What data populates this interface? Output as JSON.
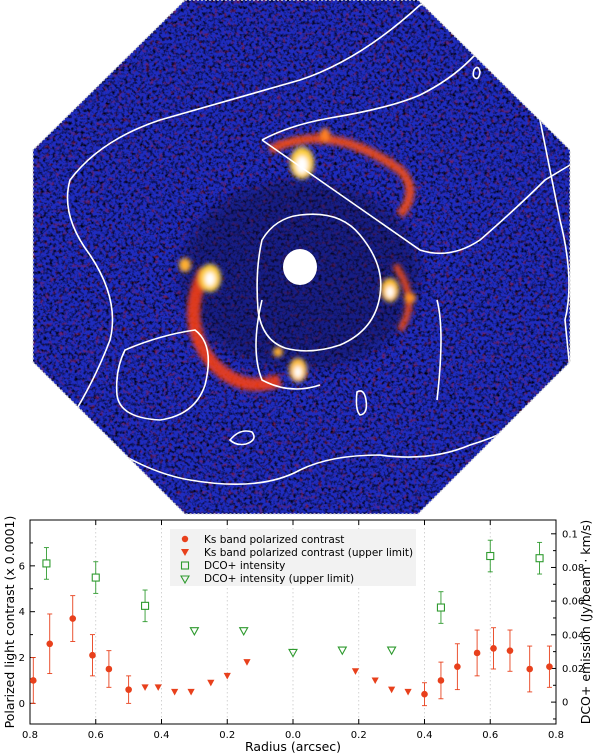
{
  "chart_data": [
    {
      "type": "image",
      "content": "polarized light image with white DCO+ contours",
      "colormap": [
        "#000008",
        "#101070",
        "#2a35d8",
        "#b02020",
        "#ff5a10",
        "#ffd060",
        "#ffffff"
      ],
      "contour_color": "#ffffff"
    },
    {
      "type": "scatter",
      "xlabel": "Radius (arcsec)",
      "ylabel": "Polarized light contrast (x 0.0001)",
      "y2label": "DCO+ emission (Jy/beam · km/s)",
      "xlim": [
        0.8,
        -0.8
      ],
      "ylim": [
        -0.9,
        8.0
      ],
      "y2lim": [
        -0.013,
        0.1082
      ],
      "xticks": [
        "0.8",
        "0.6",
        "0.4",
        "0.2",
        "0.0",
        "0.2",
        "0.4",
        "0.6",
        "0.8"
      ],
      "xtick_values": [
        0.8,
        0.6,
        0.4,
        0.2,
        0.0,
        -0.2,
        -0.4,
        -0.6,
        -0.8
      ],
      "yticks": [
        "0",
        "2",
        "4",
        "6"
      ],
      "ytick_values": [
        0,
        2,
        4,
        6
      ],
      "y2ticks": [
        "0",
        "0.02",
        "0.04",
        "0.06",
        "0.08",
        "0.1"
      ],
      "y2tick_values": [
        0,
        0.02,
        0.04,
        0.06,
        0.08,
        0.1
      ],
      "grid": "vertical dotted at x ticks",
      "legend_position": "top-center",
      "series": [
        {
          "name": "Ks band polarized contrast",
          "marker": "filled-circle",
          "color": "#e8401c",
          "axis": "left",
          "points": [
            {
              "x": 0.79,
              "y": 1.0,
              "err": 1.0
            },
            {
              "x": 0.74,
              "y": 2.6,
              "err": 1.3
            },
            {
              "x": 0.67,
              "y": 3.7,
              "err": 1.0
            },
            {
              "x": 0.61,
              "y": 2.1,
              "err": 0.9
            },
            {
              "x": 0.56,
              "y": 1.5,
              "err": 0.8
            },
            {
              "x": 0.5,
              "y": 0.6,
              "err": 0.6
            },
            {
              "x": -0.4,
              "y": 0.4,
              "err": 0.5
            },
            {
              "x": -0.45,
              "y": 1.0,
              "err": 0.8
            },
            {
              "x": -0.5,
              "y": 1.6,
              "err": 1.0
            },
            {
              "x": -0.56,
              "y": 2.2,
              "err": 1.0
            },
            {
              "x": -0.61,
              "y": 2.4,
              "err": 0.9
            },
            {
              "x": -0.66,
              "y": 2.3,
              "err": 0.9
            },
            {
              "x": -0.72,
              "y": 1.5,
              "err": 1.0
            },
            {
              "x": -0.78,
              "y": 1.6,
              "err": 0.9
            }
          ]
        },
        {
          "name": "Ks band polarized contrast (upper limit)",
          "marker": "filled-triangle-down",
          "color": "#e8401c",
          "axis": "left",
          "points": [
            {
              "x": 0.45,
              "y": 0.7
            },
            {
              "x": 0.41,
              "y": 0.7
            },
            {
              "x": 0.36,
              "y": 0.5
            },
            {
              "x": 0.31,
              "y": 0.5
            },
            {
              "x": 0.25,
              "y": 0.9
            },
            {
              "x": 0.2,
              "y": 1.2
            },
            {
              "x": 0.14,
              "y": 1.8
            },
            {
              "x": -0.19,
              "y": 1.4
            },
            {
              "x": -0.25,
              "y": 1.0
            },
            {
              "x": -0.3,
              "y": 0.6
            },
            {
              "x": -0.35,
              "y": 0.5
            }
          ]
        },
        {
          "name": "DCO+ intensity",
          "marker": "open-square",
          "color": "#2e9a2e",
          "axis": "right",
          "points": [
            {
              "x": 0.75,
              "y": 0.0824,
              "err": 0.0094
            },
            {
              "x": 0.6,
              "y": 0.074,
              "err": 0.0094
            },
            {
              "x": 0.45,
              "y": 0.0572,
              "err": 0.0094
            },
            {
              "x": -0.45,
              "y": 0.0562,
              "err": 0.0094
            },
            {
              "x": -0.6,
              "y": 0.0868,
              "err": 0.0094
            },
            {
              "x": -0.75,
              "y": 0.0855,
              "err": 0.0094
            }
          ]
        },
        {
          "name": "DCO+ intensity (upper limit)",
          "marker": "open-triangle-down",
          "color": "#2e9a2e",
          "axis": "right",
          "points": [
            {
              "x": 0.3,
              "y": 0.0422
            },
            {
              "x": 0.15,
              "y": 0.0422
            },
            {
              "x": 0.0,
              "y": 0.0293
            },
            {
              "x": -0.15,
              "y": 0.0307
            },
            {
              "x": -0.3,
              "y": 0.0307
            }
          ]
        }
      ]
    }
  ]
}
